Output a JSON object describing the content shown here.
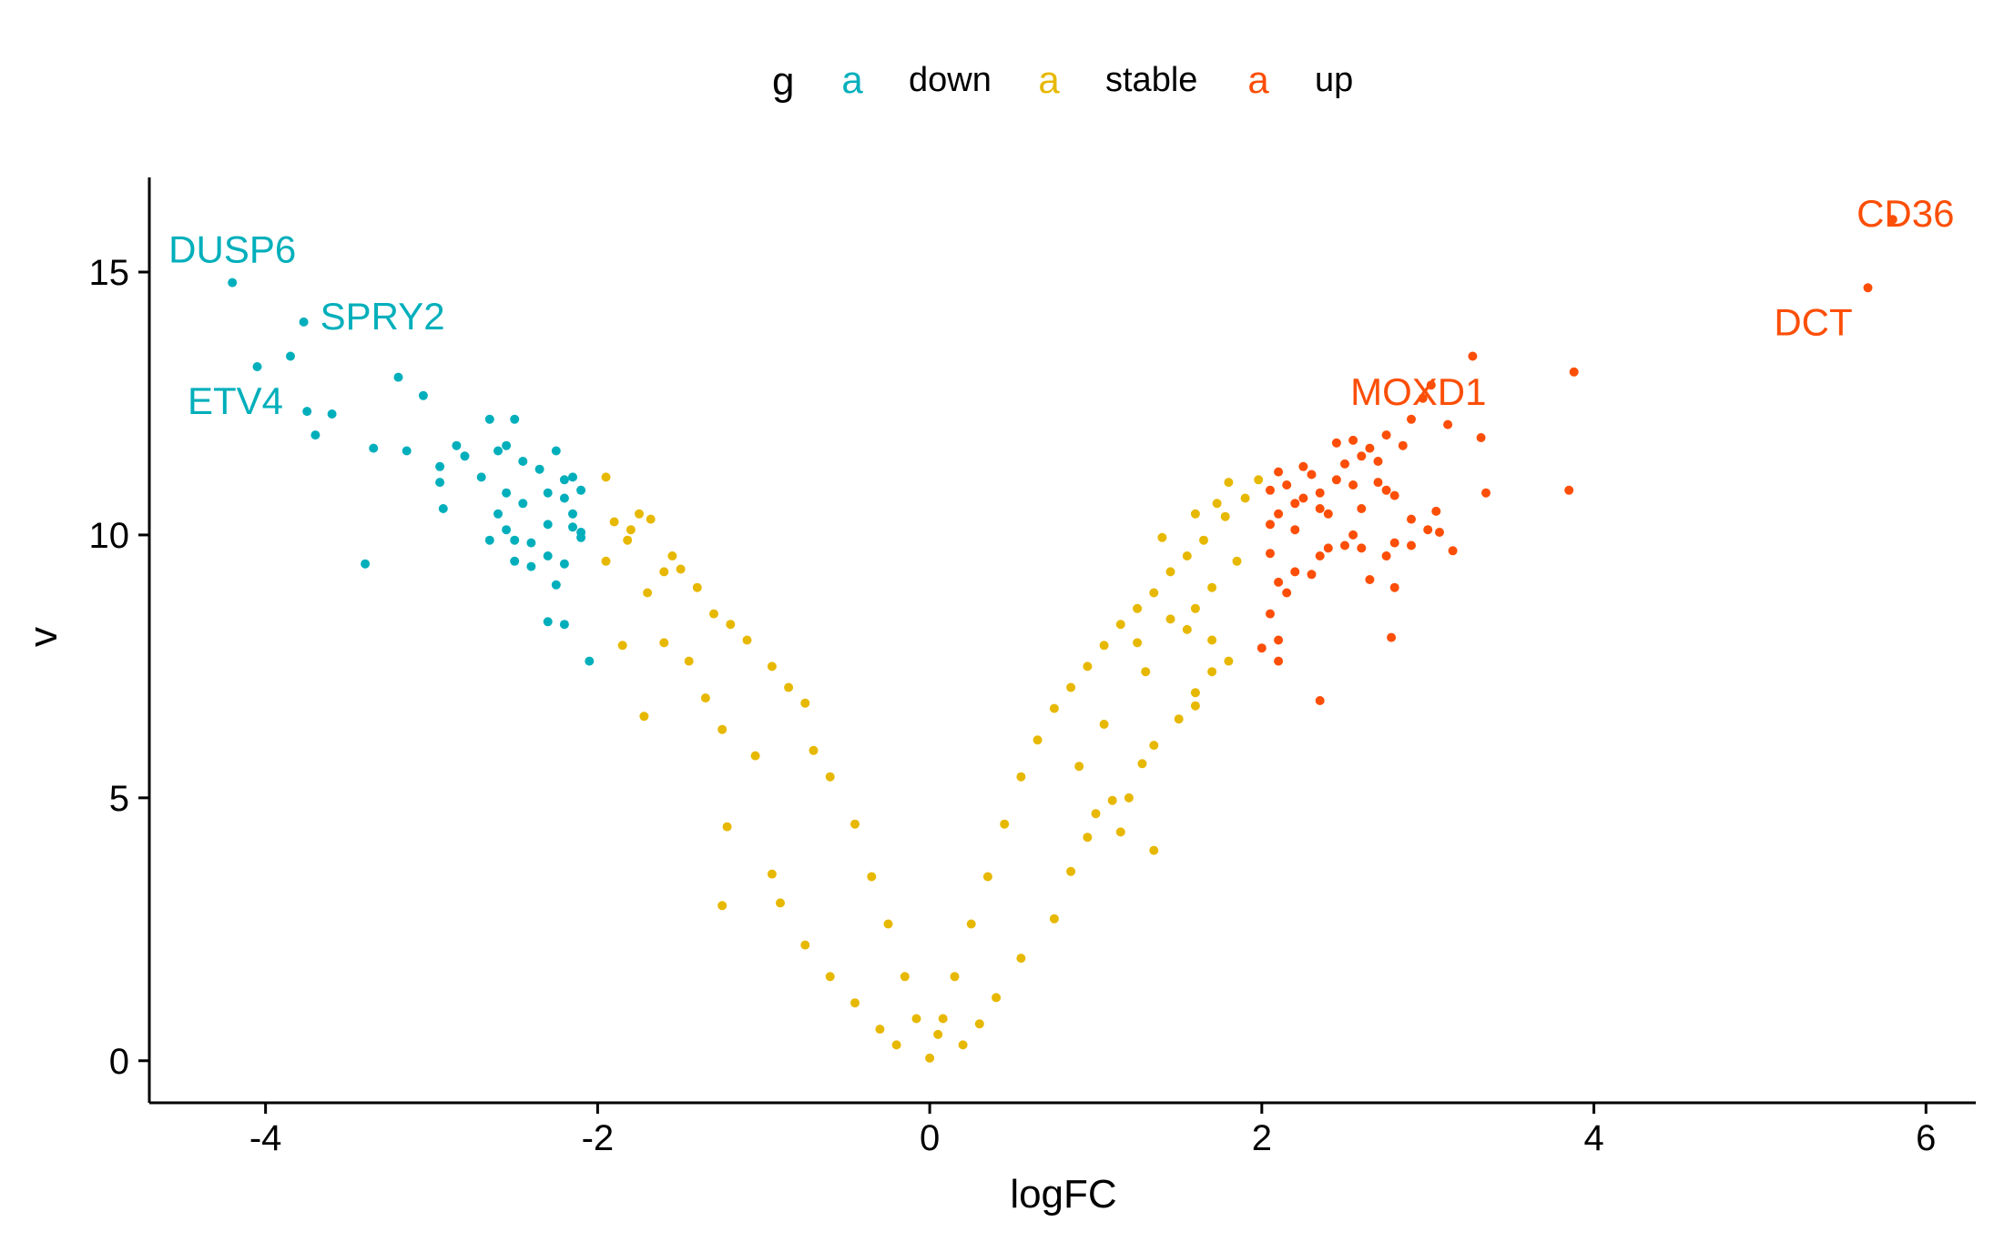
{
  "chart_data": {
    "type": "scatter",
    "title": "",
    "xlabel": "logFC",
    "ylabel": "v",
    "xlim": [
      -4.7,
      6.3
    ],
    "ylim": [
      -0.8,
      16.8
    ],
    "x_ticks": [
      -4,
      -2,
      0,
      2,
      4,
      6
    ],
    "x_tick_labels": [
      "-4",
      "-2",
      "0",
      "2",
      "4",
      "6"
    ],
    "y_ticks": [
      0,
      5,
      10,
      15
    ],
    "y_tick_labels": [
      "0",
      "5",
      "10",
      "15"
    ],
    "grid": false,
    "legend": {
      "placement": "top",
      "title": "g",
      "key_glyph": "a",
      "entries": [
        {
          "label": "down",
          "color": "#00AFBB"
        },
        {
          "label": "stable",
          "color": "#E7B800"
        },
        {
          "label": "up",
          "color": "#FC4E07"
        }
      ]
    },
    "series": [
      {
        "name": "down",
        "color": "#00AFBB",
        "points": [
          [
            -4.2,
            14.8
          ],
          [
            -3.77,
            14.05
          ],
          [
            -4.05,
            13.2
          ],
          [
            -3.85,
            13.4
          ],
          [
            -3.2,
            13.0
          ],
          [
            -3.05,
            12.65
          ],
          [
            -3.75,
            12.35
          ],
          [
            -3.6,
            12.3
          ],
          [
            -3.7,
            11.9
          ],
          [
            -2.65,
            12.2
          ],
          [
            -2.5,
            12.2
          ],
          [
            -2.6,
            11.6
          ],
          [
            -2.55,
            11.7
          ],
          [
            -2.45,
            11.4
          ],
          [
            -2.35,
            11.25
          ],
          [
            -2.25,
            11.6
          ],
          [
            -2.15,
            11.1
          ],
          [
            -2.1,
            10.85
          ],
          [
            -2.2,
            11.05
          ],
          [
            -3.35,
            11.65
          ],
          [
            -3.15,
            11.6
          ],
          [
            -2.85,
            11.7
          ],
          [
            -2.8,
            11.5
          ],
          [
            -2.95,
            11.3
          ],
          [
            -2.95,
            11.0
          ],
          [
            -2.7,
            11.1
          ],
          [
            -2.55,
            10.8
          ],
          [
            -2.45,
            10.6
          ],
          [
            -2.6,
            10.4
          ],
          [
            -2.3,
            10.8
          ],
          [
            -2.2,
            10.7
          ],
          [
            -2.15,
            10.4
          ],
          [
            -2.3,
            10.2
          ],
          [
            -2.1,
            10.05
          ],
          [
            -2.5,
            9.9
          ],
          [
            -2.65,
            9.9
          ],
          [
            -2.4,
            9.85
          ],
          [
            -2.3,
            9.6
          ],
          [
            -2.2,
            9.45
          ],
          [
            -2.25,
            9.05
          ],
          [
            -2.4,
            9.4
          ],
          [
            -2.5,
            9.5
          ],
          [
            -2.3,
            8.35
          ],
          [
            -2.2,
            8.3
          ],
          [
            -2.05,
            7.6
          ],
          [
            -2.93,
            10.5
          ],
          [
            -3.4,
            9.45
          ],
          [
            -2.1,
            9.95
          ],
          [
            -2.15,
            10.15
          ],
          [
            -2.55,
            10.1
          ]
        ]
      },
      {
        "name": "up",
        "color": "#FC4E07",
        "points": [
          [
            5.8,
            16.0
          ],
          [
            5.65,
            14.7
          ],
          [
            3.27,
            13.4
          ],
          [
            3.88,
            13.1
          ],
          [
            3.02,
            12.85
          ],
          [
            2.97,
            12.6
          ],
          [
            2.9,
            12.2
          ],
          [
            3.12,
            12.1
          ],
          [
            2.75,
            11.9
          ],
          [
            3.32,
            11.85
          ],
          [
            2.55,
            11.8
          ],
          [
            2.45,
            11.75
          ],
          [
            2.65,
            11.65
          ],
          [
            2.85,
            11.7
          ],
          [
            2.6,
            11.5
          ],
          [
            2.7,
            11.4
          ],
          [
            2.5,
            11.35
          ],
          [
            2.25,
            11.3
          ],
          [
            2.1,
            11.2
          ],
          [
            2.3,
            11.15
          ],
          [
            2.45,
            11.05
          ],
          [
            2.7,
            11.0
          ],
          [
            2.55,
            10.95
          ],
          [
            2.15,
            10.95
          ],
          [
            2.05,
            10.85
          ],
          [
            2.35,
            10.8
          ],
          [
            2.25,
            10.7
          ],
          [
            2.75,
            10.85
          ],
          [
            2.8,
            10.75
          ],
          [
            2.2,
            10.6
          ],
          [
            2.35,
            10.5
          ],
          [
            2.1,
            10.4
          ],
          [
            2.4,
            10.4
          ],
          [
            2.6,
            10.5
          ],
          [
            3.05,
            10.45
          ],
          [
            3.35,
            10.8
          ],
          [
            3.85,
            10.85
          ],
          [
            2.9,
            10.3
          ],
          [
            2.05,
            10.2
          ],
          [
            2.2,
            10.1
          ],
          [
            3.0,
            10.1
          ],
          [
            3.07,
            10.05
          ],
          [
            2.55,
            10.0
          ],
          [
            2.8,
            9.85
          ],
          [
            2.9,
            9.8
          ],
          [
            2.5,
            9.8
          ],
          [
            2.6,
            9.75
          ],
          [
            2.4,
            9.75
          ],
          [
            2.35,
            9.6
          ],
          [
            2.75,
            9.6
          ],
          [
            3.15,
            9.7
          ],
          [
            2.05,
            9.65
          ],
          [
            2.2,
            9.3
          ],
          [
            2.3,
            9.25
          ],
          [
            2.1,
            9.1
          ],
          [
            2.65,
            9.15
          ],
          [
            2.8,
            9.0
          ],
          [
            2.15,
            8.9
          ],
          [
            2.05,
            8.5
          ],
          [
            2.1,
            8.0
          ],
          [
            2.78,
            8.05
          ],
          [
            2.0,
            7.85
          ],
          [
            2.1,
            7.6
          ],
          [
            2.35,
            6.85
          ]
        ]
      },
      {
        "name": "stable",
        "color": "#E7B800",
        "points": [
          [
            -1.95,
            11.1
          ],
          [
            -1.75,
            10.4
          ],
          [
            -1.68,
            10.3
          ],
          [
            -1.9,
            10.25
          ],
          [
            -1.8,
            10.1
          ],
          [
            -1.82,
            9.9
          ],
          [
            -1.55,
            9.6
          ],
          [
            -1.95,
            9.5
          ],
          [
            -1.6,
            9.3
          ],
          [
            -1.5,
            9.35
          ],
          [
            -1.4,
            9.0
          ],
          [
            -1.7,
            8.9
          ],
          [
            -1.3,
            8.5
          ],
          [
            -1.2,
            8.3
          ],
          [
            -1.1,
            8.0
          ],
          [
            -0.95,
            7.5
          ],
          [
            -0.85,
            7.1
          ],
          [
            -0.75,
            6.8
          ],
          [
            -1.72,
            6.55
          ],
          [
            -1.25,
            6.3
          ],
          [
            -1.05,
            5.8
          ],
          [
            -0.7,
            5.9
          ],
          [
            -0.6,
            5.4
          ],
          [
            -0.45,
            4.5
          ],
          [
            -0.35,
            3.5
          ],
          [
            -0.25,
            2.6
          ],
          [
            -0.15,
            1.6
          ],
          [
            -0.08,
            0.8
          ],
          [
            0.0,
            0.05
          ],
          [
            0.05,
            0.5
          ],
          [
            -1.22,
            4.45
          ],
          [
            -0.95,
            3.55
          ],
          [
            -0.9,
            3.0
          ],
          [
            -0.75,
            2.2
          ],
          [
            -0.6,
            1.6
          ],
          [
            -0.45,
            1.1
          ],
          [
            -0.3,
            0.6
          ],
          [
            -1.25,
            2.95
          ],
          [
            -1.6,
            7.95
          ],
          [
            -1.45,
            7.6
          ],
          [
            -1.85,
            7.9
          ],
          [
            -1.35,
            6.9
          ],
          [
            0.08,
            0.8
          ],
          [
            0.15,
            1.6
          ],
          [
            0.25,
            2.6
          ],
          [
            0.35,
            3.5
          ],
          [
            0.45,
            4.5
          ],
          [
            0.55,
            5.4
          ],
          [
            0.65,
            6.1
          ],
          [
            0.75,
            6.7
          ],
          [
            0.85,
            7.1
          ],
          [
            0.95,
            7.5
          ],
          [
            1.05,
            7.9
          ],
          [
            1.15,
            8.3
          ],
          [
            1.25,
            8.6
          ],
          [
            1.35,
            8.9
          ],
          [
            1.45,
            9.3
          ],
          [
            1.55,
            9.6
          ],
          [
            1.65,
            9.9
          ],
          [
            1.78,
            10.35
          ],
          [
            1.9,
            10.7
          ],
          [
            1.98,
            11.05
          ],
          [
            1.8,
            11.0
          ],
          [
            1.73,
            10.6
          ],
          [
            1.6,
            10.4
          ],
          [
            1.4,
            9.95
          ],
          [
            1.6,
            8.6
          ],
          [
            1.55,
            8.2
          ],
          [
            1.7,
            8.0
          ],
          [
            1.8,
            7.6
          ],
          [
            1.6,
            7.0
          ],
          [
            1.5,
            6.5
          ],
          [
            1.6,
            6.75
          ],
          [
            1.7,
            7.4
          ],
          [
            1.35,
            6.0
          ],
          [
            1.28,
            5.65
          ],
          [
            1.2,
            5.0
          ],
          [
            1.1,
            4.95
          ],
          [
            1.0,
            4.7
          ],
          [
            1.35,
            4.0
          ],
          [
            0.95,
            4.25
          ],
          [
            0.85,
            3.6
          ],
          [
            0.75,
            2.7
          ],
          [
            0.55,
            1.95
          ],
          [
            0.4,
            1.2
          ],
          [
            0.3,
            0.7
          ],
          [
            0.2,
            0.3
          ],
          [
            -0.2,
            0.3
          ],
          [
            1.15,
            4.35
          ],
          [
            0.9,
            5.6
          ],
          [
            1.05,
            6.4
          ],
          [
            1.3,
            7.4
          ],
          [
            1.45,
            8.4
          ],
          [
            1.25,
            7.95
          ],
          [
            1.7,
            9.0
          ],
          [
            1.85,
            9.5
          ]
        ]
      }
    ],
    "annotations": [
      {
        "text": "DUSP6",
        "series": "down",
        "x": -4.2,
        "y": 14.8
      },
      {
        "text": "SPRY2",
        "series": "down",
        "x": -3.77,
        "y": 14.05
      },
      {
        "text": "ETV4",
        "series": "down",
        "x": -4.05,
        "y": 13.2
      },
      {
        "text": "CD36",
        "series": "up",
        "x": 5.8,
        "y": 16.0
      },
      {
        "text": "DCT",
        "series": "up",
        "x": 5.65,
        "y": 14.7
      },
      {
        "text": "MOXD1",
        "series": "up",
        "x": 3.02,
        "y": 12.85
      }
    ]
  }
}
